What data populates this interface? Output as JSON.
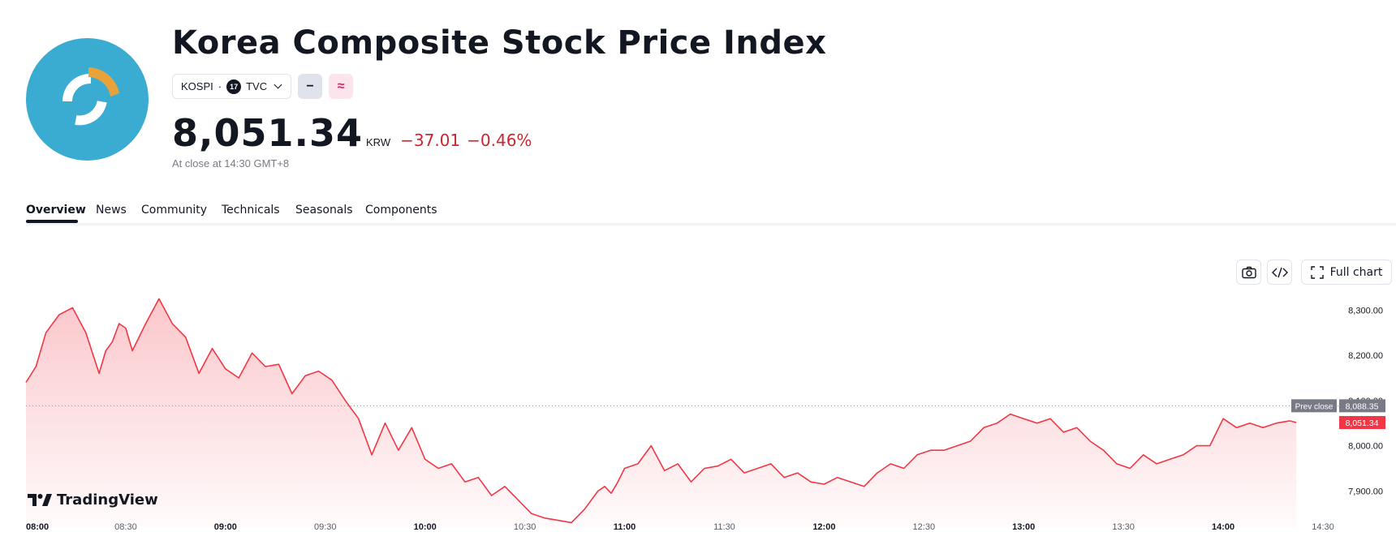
{
  "header": {
    "title": "Korea Composite Stock Price Index",
    "symbol": "KOSPI",
    "separator": "·",
    "exchange": "TVC",
    "exchange_badge": "17",
    "chip_minus": "−",
    "chip_approx": "≈",
    "price": "8,051.34",
    "currency": "KRW",
    "change": "−37.01",
    "change_percent": "−0.46%",
    "status": "At close at 14:30 GMT+8"
  },
  "tabs": [
    "Overview",
    "News",
    "Community",
    "Technicals",
    "Seasonals",
    "Components"
  ],
  "toolbar": {
    "screenshot_icon": "camera-icon",
    "embed_icon": "code-icon",
    "full_chart_label": "Full chart"
  },
  "watermark": {
    "brand": "TradingView"
  },
  "colors": {
    "up": "#26a69a",
    "down": "#d1242f",
    "line": "#f23645",
    "logo_bg": "#3aacd1",
    "logo_accent": "#e8a23a"
  },
  "chart_data": {
    "type": "area",
    "x_ticks": [
      {
        "label": "08:00",
        "t": 0,
        "bold": true
      },
      {
        "label": "08:30",
        "t": 30,
        "bold": false
      },
      {
        "label": "09:00",
        "t": 60,
        "bold": true
      },
      {
        "label": "09:30",
        "t": 90,
        "bold": false
      },
      {
        "label": "10:00",
        "t": 120,
        "bold": true
      },
      {
        "label": "10:30",
        "t": 150,
        "bold": false
      },
      {
        "label": "11:00",
        "t": 180,
        "bold": true
      },
      {
        "label": "11:30",
        "t": 210,
        "bold": false
      },
      {
        "label": "12:00",
        "t": 240,
        "bold": true
      },
      {
        "label": "12:30",
        "t": 270,
        "bold": false
      },
      {
        "label": "13:00",
        "t": 300,
        "bold": true
      },
      {
        "label": "13:30",
        "t": 330,
        "bold": false
      },
      {
        "label": "14:00",
        "t": 360,
        "bold": true
      },
      {
        "label": "14:30",
        "t": 390,
        "bold": false
      }
    ],
    "y_ticks": [
      {
        "label": "8,300.00",
        "v": 8300
      },
      {
        "label": "8,200.00",
        "v": 8200
      },
      {
        "label": "8,100.00",
        "v": 8100
      },
      {
        "label": "8,000.00",
        "v": 8000
      },
      {
        "label": "7,900.00",
        "v": 7900
      }
    ],
    "ylim": [
      7820,
      8340
    ],
    "prev_close": {
      "label": "Prev close",
      "value": 8088.35,
      "value_label": "8,088.35"
    },
    "last": {
      "value": 8051.34,
      "value_label": "8,051.34"
    },
    "x": [
      0,
      3,
      6,
      10,
      14,
      18,
      22,
      24,
      26,
      28,
      30,
      32,
      36,
      40,
      44,
      48,
      52,
      56,
      60,
      64,
      68,
      72,
      76,
      80,
      84,
      88,
      92,
      96,
      100,
      104,
      108,
      112,
      116,
      120,
      124,
      128,
      132,
      136,
      140,
      144,
      148,
      152,
      156,
      160,
      164,
      168,
      170,
      172,
      174,
      176,
      178,
      180,
      184,
      188,
      192,
      196,
      200,
      204,
      208,
      212,
      216,
      220,
      224,
      228,
      232,
      236,
      240,
      244,
      248,
      252,
      256,
      260,
      264,
      268,
      272,
      276,
      280,
      284,
      288,
      292,
      296,
      300,
      304,
      308,
      312,
      316,
      320,
      324,
      328,
      332,
      336,
      340,
      344,
      348,
      352,
      356,
      360,
      364,
      368,
      372,
      376,
      380,
      382
    ],
    "y": [
      8140,
      8175,
      8250,
      8290,
      8305,
      8250,
      8160,
      8210,
      8230,
      8270,
      8260,
      8210,
      8270,
      8325,
      8270,
      8240,
      8160,
      8215,
      8170,
      8150,
      8205,
      8175,
      8180,
      8115,
      8155,
      8165,
      8145,
      8100,
      8060,
      7980,
      8050,
      7990,
      8040,
      7970,
      7950,
      7960,
      7920,
      7930,
      7890,
      7910,
      7880,
      7850,
      7840,
      7835,
      7830,
      7860,
      7880,
      7900,
      7910,
      7895,
      7920,
      7950,
      7960,
      8000,
      7945,
      7960,
      7920,
      7950,
      7955,
      7970,
      7940,
      7950,
      7960,
      7930,
      7940,
      7920,
      7915,
      7930,
      7920,
      7910,
      7940,
      7960,
      7950,
      7980,
      7990,
      7990,
      8000,
      8010,
      8040,
      8050,
      8070,
      8060,
      8050,
      8060,
      8030,
      8040,
      8010,
      7990,
      7960,
      7950,
      7980,
      7960,
      7970,
      7980,
      8000,
      8000,
      8060,
      8040,
      8050,
      8040,
      8050,
      8055,
      8051.34
    ]
  }
}
